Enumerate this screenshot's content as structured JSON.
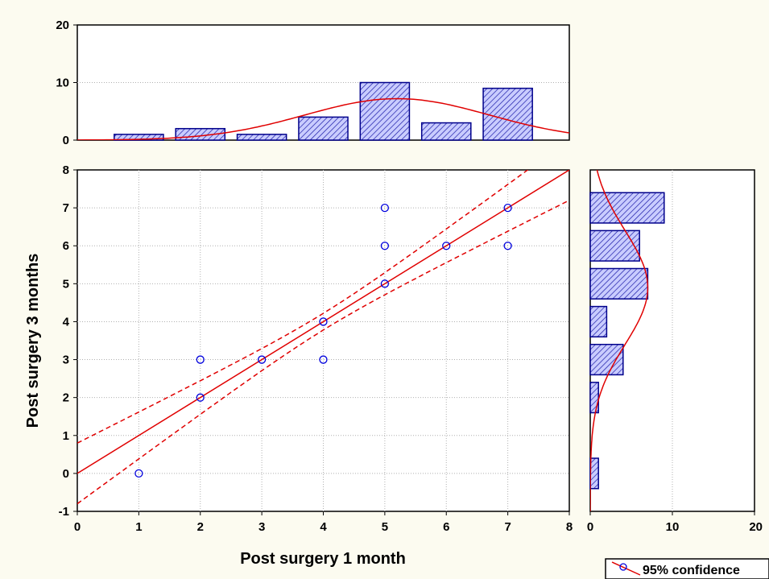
{
  "chart_data": {
    "type": "scatter",
    "x_label": "Post surgery 1 month",
    "y_label": "Post surgery 3 months",
    "scatter": {
      "points": [
        {
          "x": 1,
          "y": 0
        },
        {
          "x": 2,
          "y": 2
        },
        {
          "x": 2,
          "y": 3
        },
        {
          "x": 3,
          "y": 3
        },
        {
          "x": 4,
          "y": 3
        },
        {
          "x": 4,
          "y": 4
        },
        {
          "x": 5,
          "y": 5
        },
        {
          "x": 5,
          "y": 6
        },
        {
          "x": 5,
          "y": 7
        },
        {
          "x": 6,
          "y": 6
        },
        {
          "x": 7,
          "y": 6
        },
        {
          "x": 7,
          "y": 7
        }
      ],
      "xlim": [
        0,
        8
      ],
      "ylim": [
        -1,
        8
      ],
      "x_ticks": [
        "0",
        "1",
        "2",
        "3",
        "4",
        "5",
        "6",
        "7",
        "8"
      ],
      "y_ticks": [
        "-1",
        "0",
        "1",
        "2",
        "3",
        "4",
        "5",
        "6",
        "7",
        "8"
      ],
      "grid": true,
      "regression": {
        "intercept": 0,
        "slope": 1,
        "ci_offset_at_ends": 0.8
      }
    },
    "top_histogram": {
      "categories": [
        1,
        2,
        3,
        4,
        5,
        6,
        7
      ],
      "values": [
        1,
        2,
        1,
        4,
        10,
        3,
        9
      ],
      "ylim": [
        0,
        20
      ],
      "y_ticks": [
        "0",
        "10",
        "20"
      ],
      "normal_fit": {
        "mean": 5.2,
        "sd": 1.5,
        "peak": 7.2
      }
    },
    "right_histogram": {
      "categories": [
        0,
        2,
        3,
        4,
        5,
        6,
        7
      ],
      "values": [
        1,
        1,
        4,
        2,
        7,
        6,
        9
      ],
      "xlim": [
        0,
        20
      ],
      "x_ticks": [
        "0",
        "10",
        "20"
      ],
      "normal_fit": {
        "mean": 4.9,
        "sd": 1.5,
        "peak": 7.0
      }
    },
    "legend": {
      "label": "95% confidence",
      "placement": "bottom-right"
    },
    "colors": {
      "background": "#fcfbf0",
      "marker": "#0000dd",
      "bar_fill": "#c9ccff",
      "bar_hatch": "#1a1aa6",
      "bar_stroke": "#00008b",
      "fit_line": "#e00000",
      "grid": "#b0b0b0"
    }
  }
}
